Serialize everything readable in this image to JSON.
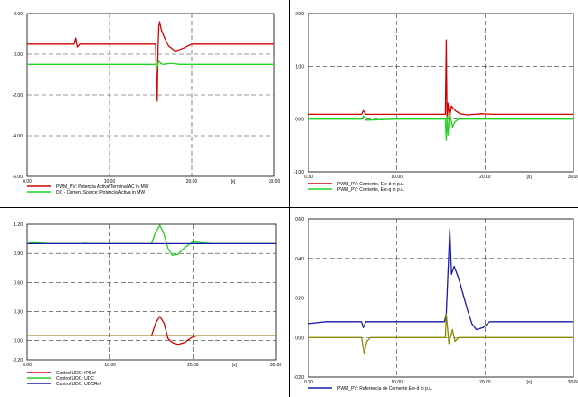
{
  "chart_data": [
    {
      "type": "line",
      "xlabel": "",
      "x_unit_label": "[s]",
      "xlim": [
        0,
        30
      ],
      "ylim": [
        -6,
        2
      ],
      "x_ticks": [
        "0.00",
        "10.00",
        "20.00",
        "30.00"
      ],
      "y_ticks": [
        "2.00",
        "0.00",
        "-2.00",
        "-4.00",
        "-6.00"
      ],
      "grid": true,
      "legend": "bottom-left",
      "series": [
        {
          "name": "PWM_PV: Potencia Activa/Terminal AC in MW",
          "color": "#d40000",
          "x": [
            0,
            5.7,
            5.9,
            6.1,
            6.4,
            10,
            15.6,
            15.7,
            15.8,
            15.9,
            16.0,
            16.1,
            16.3,
            16.7,
            17.2,
            18.0,
            19.0,
            20.0,
            21.0,
            30
          ],
          "y": [
            0.5,
            0.5,
            0.8,
            0.35,
            0.5,
            0.5,
            0.5,
            -1.2,
            -2.3,
            0.3,
            1.4,
            1.6,
            1.2,
            0.8,
            0.4,
            0.15,
            0.3,
            0.5,
            0.5,
            0.5
          ]
        },
        {
          "name": "DC - Current Source: Potencia Activa in MW",
          "color": "#1ed41e",
          "x": [
            0,
            15.6,
            15.8,
            16.0,
            16.2,
            16.5,
            17.5,
            18.5,
            30
          ],
          "y": [
            -0.5,
            -0.5,
            -0.65,
            -0.3,
            -0.45,
            -0.5,
            -0.45,
            -0.5,
            -0.5
          ]
        }
      ]
    },
    {
      "type": "line",
      "xlabel": "",
      "x_unit_label": "[s]",
      "xlim": [
        0,
        30
      ],
      "ylim": [
        -1,
        2
      ],
      "x_ticks": [
        "0.00",
        "10.00",
        "20.00",
        "30.00"
      ],
      "y_ticks": [
        "2.00",
        "1.00",
        "0.00",
        "-1.00"
      ],
      "grid": true,
      "legend": "bottom-left",
      "series": [
        {
          "name": "PWM_PV: Corriente, Eje-d in p.u.",
          "color": "#d40000",
          "x": [
            0,
            6.0,
            6.2,
            6.5,
            10,
            15.5,
            15.6,
            15.7,
            15.8,
            16.0,
            16.2,
            16.4,
            16.7,
            17.2,
            18.0,
            19.5,
            21.0,
            30
          ],
          "y": [
            0.09,
            0.09,
            0.16,
            0.09,
            0.09,
            0.09,
            1.5,
            -0.15,
            0.3,
            0.05,
            0.25,
            0.2,
            0.15,
            0.1,
            0.08,
            0.1,
            0.09,
            0.09
          ]
        },
        {
          "name": "PWM_PV: Corriente, Eje-q in p.u.",
          "color": "#1ed41e",
          "x": [
            0,
            6.0,
            6.2,
            6.5,
            10,
            15.5,
            15.6,
            15.7,
            15.8,
            16.0,
            16.3,
            16.6,
            17.0,
            18.0,
            30
          ],
          "y": [
            0.0,
            0.0,
            0.06,
            -0.02,
            0.0,
            0.0,
            -0.4,
            0.05,
            -0.3,
            0.12,
            -0.15,
            -0.05,
            0.0,
            0.0,
            0.0
          ]
        }
      ]
    },
    {
      "type": "line",
      "xlabel": "",
      "x_unit_label": "[s]",
      "xlim": [
        0,
        30
      ],
      "ylim": [
        -0.2,
        1.2
      ],
      "x_ticks": [
        "0.00",
        "10.00",
        "20.00",
        "30.00"
      ],
      "y_ticks": [
        "1.20",
        "0.90",
        "0.60",
        "0.30",
        "0.00",
        "-0.20"
      ],
      "grid": true,
      "legend": "bottom-left",
      "series": [
        {
          "name": "Control UDC: IPRef",
          "color": "#d40000",
          "x": [
            0,
            15.0,
            15.5,
            16.0,
            16.5,
            17.0,
            17.5,
            18.2,
            19.0,
            19.8,
            20.5,
            30
          ],
          "y": [
            0.05,
            0.05,
            0.18,
            0.25,
            0.18,
            0.02,
            -0.02,
            -0.04,
            -0.02,
            0.03,
            0.05,
            0.05
          ]
        },
        {
          "name": "Control UDC: UDC",
          "color": "#1ed41e",
          "x": [
            0,
            0.4,
            1.0,
            3.0,
            6.5,
            7.0,
            7.5,
            10,
            15.0,
            15.5,
            16.0,
            16.5,
            17.0,
            17.5,
            18.2,
            19.0,
            20.0,
            21.0,
            22.5,
            30
          ],
          "y": [
            1.0,
            1.01,
            1.01,
            1.0,
            1.0,
            1.005,
            1.0,
            1.0,
            1.0,
            1.12,
            1.19,
            1.1,
            0.95,
            0.88,
            0.89,
            0.96,
            1.02,
            1.01,
            1.0,
            1.0
          ]
        },
        {
          "name": "Control UDC: UDCRef",
          "color": "#1a1aa8",
          "x": [
            0,
            30
          ],
          "y": [
            1.0,
            1.0
          ]
        },
        {
          "name": "",
          "color": "#9a6a00",
          "x": [
            0,
            30
          ],
          "y": [
            0.05,
            0.05
          ]
        }
      ]
    },
    {
      "type": "line",
      "xlabel": "",
      "x_unit_label": "[s]",
      "xlim": [
        0,
        30
      ],
      "ylim": [
        -0.2,
        0.6
      ],
      "x_ticks": [
        "0.00",
        "10.00",
        "20.00",
        "30.00"
      ],
      "y_ticks": [
        "0.60",
        "0.40",
        "0.20",
        "0.00",
        "-0.20"
      ],
      "grid": true,
      "legend": "bottom-left",
      "series": [
        {
          "name": "PWM_PV: Referencia de Corriente Eje-d in p.u.",
          "color": "#1a1aa8",
          "x": [
            0,
            2.0,
            6.0,
            6.2,
            6.5,
            10,
            15.4,
            15.6,
            16.0,
            16.2,
            16.5,
            17.0,
            17.5,
            18.0,
            18.5,
            19.0,
            19.8,
            20.5,
            21.0,
            30
          ],
          "y": [
            0.07,
            0.08,
            0.08,
            0.05,
            0.08,
            0.08,
            0.08,
            0.12,
            0.55,
            0.32,
            0.36,
            0.3,
            0.22,
            0.14,
            0.07,
            0.04,
            0.05,
            0.08,
            0.08,
            0.08
          ]
        },
        {
          "name": "",
          "color": "#8a8a00",
          "x": [
            0,
            6.0,
            6.3,
            6.6,
            7.0,
            10,
            15.5,
            15.6,
            15.9,
            16.3,
            16.6,
            17.0,
            17.5,
            30
          ],
          "y": [
            0.0,
            0.0,
            -0.08,
            -0.02,
            0.0,
            0.0,
            0.0,
            0.12,
            -0.03,
            0.04,
            -0.02,
            0.0,
            0.0,
            0.0
          ]
        }
      ]
    }
  ]
}
